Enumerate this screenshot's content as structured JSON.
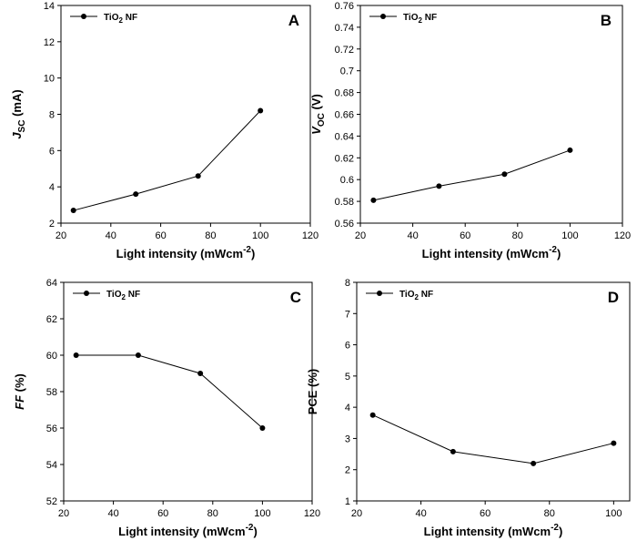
{
  "chart_data": [
    {
      "panel": "A",
      "type": "line",
      "x": [
        25,
        50,
        75,
        100
      ],
      "y": [
        2.7,
        3.6,
        4.6,
        8.2
      ],
      "series_name": "TiO",
      "series_sub": "2",
      "series_suffix": " NF",
      "xlabel": "Light intensity (mWcm",
      "xlabel_sup": "-2",
      "xlabel_close": ")",
      "ylabel_main": "J",
      "ylabel_sub": "SC",
      "ylabel_unit": " (mA)",
      "xlim": [
        20,
        120
      ],
      "ylim": [
        2,
        14
      ],
      "xticks": [
        "20",
        "40",
        "60",
        "80",
        "100",
        "120"
      ],
      "yticks": [
        "2",
        "4",
        "6",
        "8",
        "10",
        "12",
        "14"
      ],
      "grid": false,
      "legend_placement": "top-left"
    },
    {
      "panel": "B",
      "type": "line",
      "x": [
        25,
        50,
        75,
        100
      ],
      "y": [
        0.581,
        0.594,
        0.605,
        0.627
      ],
      "series_name": "TiO",
      "series_sub": "2",
      "series_suffix": " NF",
      "xlabel": "Light intensity (mWcm",
      "xlabel_sup": "-2",
      "xlabel_close": ")",
      "ylabel_main": "V",
      "ylabel_sub": "OC",
      "ylabel_unit": " (V)",
      "xlim": [
        20,
        120
      ],
      "ylim": [
        0.56,
        0.76
      ],
      "xticks": [
        "20",
        "40",
        "60",
        "80",
        "100",
        "120"
      ],
      "yticks": [
        "0.56",
        "0.58",
        "0.6",
        "0.62",
        "0.64",
        "0.66",
        "0.68",
        "0.7",
        "0.72",
        "0.74",
        "0.76"
      ],
      "grid": false,
      "legend_placement": "top-left"
    },
    {
      "panel": "C",
      "type": "line",
      "x": [
        25,
        50,
        75,
        100
      ],
      "y": [
        60,
        60,
        59,
        56
      ],
      "series_name": "TiO",
      "series_sub": "2",
      "series_suffix": " NF",
      "xlabel": "Light intensity (mWcm",
      "xlabel_sup": "-2",
      "xlabel_close": ")",
      "ylabel_main": "FF",
      "ylabel_sub": "",
      "ylabel_unit": " (%)",
      "xlim": [
        20,
        120
      ],
      "ylim": [
        52,
        64
      ],
      "xticks": [
        "20",
        "40",
        "60",
        "80",
        "100",
        "120"
      ],
      "yticks": [
        "52",
        "54",
        "56",
        "58",
        "60",
        "62",
        "64"
      ],
      "grid": false,
      "legend_placement": "top-left"
    },
    {
      "panel": "D",
      "type": "line",
      "x": [
        25,
        50,
        75,
        100
      ],
      "y": [
        3.75,
        2.58,
        2.2,
        2.85
      ],
      "series_name": "TiO",
      "series_sub": "2",
      "series_suffix": " NF",
      "xlabel": "Light intensity (mWcm",
      "xlabel_sup": "-2",
      "xlabel_close": ")",
      "ylabel_main": "PCE",
      "ylabel_sub": "",
      "ylabel_unit": " (%)",
      "xlim": [
        20,
        105
      ],
      "ylim": [
        1,
        8
      ],
      "xticks": [
        "20",
        "40",
        "60",
        "80",
        "100"
      ],
      "yticks": [
        "1",
        "2",
        "3",
        "4",
        "5",
        "6",
        "7",
        "8"
      ],
      "grid": false,
      "legend_placement": "top-left"
    }
  ]
}
